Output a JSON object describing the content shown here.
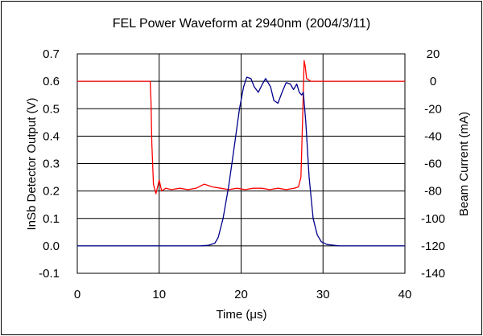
{
  "chart_data": {
    "type": "line",
    "title": "FEL Power Waveform at 2940nm (2004/3/11)",
    "xlabel": "Time (μs)",
    "ylabel_left": "InSb Detector Output (V)",
    "ylabel_right": "Beam Current (mA)",
    "xlim": [
      0,
      40
    ],
    "ylim_left": [
      -0.1,
      0.7
    ],
    "ylim_right": [
      -140,
      20
    ],
    "x_ticks": [
      "0",
      "10",
      "20",
      "30",
      "40"
    ],
    "y_ticks_left": [
      "0.7",
      "0.6",
      "0.5",
      "0.4",
      "0.3",
      "0.2",
      "0.1",
      "0.0",
      "-0.1"
    ],
    "y_ticks_right": [
      "20",
      "0",
      "-20",
      "-40",
      "-60",
      "-80",
      "-100",
      "-120",
      "-140"
    ],
    "grid": true,
    "legend": "none",
    "series": [
      {
        "axis": "right",
        "color": "#ff0000",
        "x": [
          0,
          2,
          4,
          6,
          8,
          8.9,
          9.0,
          9.1,
          9.3,
          9.6,
          10.0,
          10.3,
          10.8,
          11.5,
          12.5,
          13.5,
          14.5,
          15.5,
          16.5,
          17.5,
          18.5,
          19.5,
          20.5,
          21.5,
          22.5,
          23.5,
          24.5,
          25.5,
          26.5,
          27.0,
          27.3,
          27.5,
          27.7,
          27.8,
          28.0,
          28.5,
          30,
          32,
          35,
          38,
          40
        ],
        "y": [
          0,
          0,
          0,
          0,
          0,
          0,
          -15,
          -45,
          -75,
          -82,
          -72,
          -80,
          -78,
          -79,
          -78,
          -79,
          -78,
          -75,
          -77,
          -78,
          -79,
          -78,
          -79,
          -78,
          -78,
          -79,
          -78,
          -79,
          -78,
          -77,
          -70,
          -30,
          15,
          12,
          2,
          0,
          0,
          0,
          0,
          0,
          0
        ]
      },
      {
        "axis": "left",
        "color": "#00008b",
        "x": [
          0,
          5,
          10,
          14,
          15,
          16,
          16.8,
          17.2,
          17.8,
          18.5,
          19.2,
          19.8,
          20.3,
          20.7,
          21.2,
          21.6,
          22.1,
          22.6,
          23.0,
          23.6,
          24.0,
          24.5,
          25.0,
          25.5,
          26.0,
          26.4,
          26.8,
          27.1,
          27.4,
          27.6,
          27.9,
          28.3,
          28.8,
          29.3,
          29.8,
          30.5,
          32,
          35,
          40
        ],
        "y": [
          0.0,
          0.0,
          0.0,
          0.0,
          0.0,
          0.002,
          0.01,
          0.03,
          0.1,
          0.22,
          0.37,
          0.5,
          0.58,
          0.615,
          0.61,
          0.58,
          0.56,
          0.59,
          0.61,
          0.58,
          0.53,
          0.52,
          0.56,
          0.595,
          0.59,
          0.57,
          0.59,
          0.56,
          0.55,
          0.56,
          0.45,
          0.25,
          0.1,
          0.04,
          0.015,
          0.005,
          0.0,
          0.0,
          0.0
        ]
      }
    ]
  }
}
